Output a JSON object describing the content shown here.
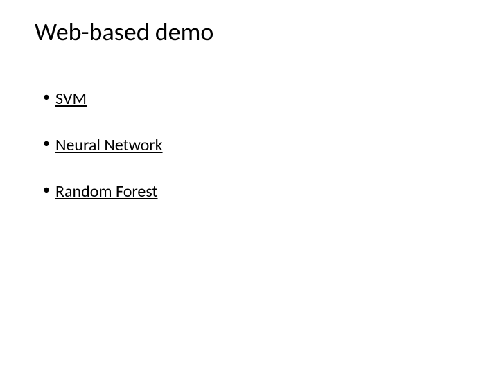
{
  "slide": {
    "title": "Web-based demo",
    "title_fontsize": 36,
    "title_color": "#000000",
    "background_color": "#ffffff",
    "bullets": [
      {
        "label": "SVM",
        "underline": true
      },
      {
        "label": "Neural Network",
        "underline": true
      },
      {
        "label": "Random Forest",
        "underline": true
      }
    ],
    "bullet_fontsize": 24,
    "bullet_color": "#000000",
    "bullet_marker": "•",
    "font_family": "Calibri"
  }
}
